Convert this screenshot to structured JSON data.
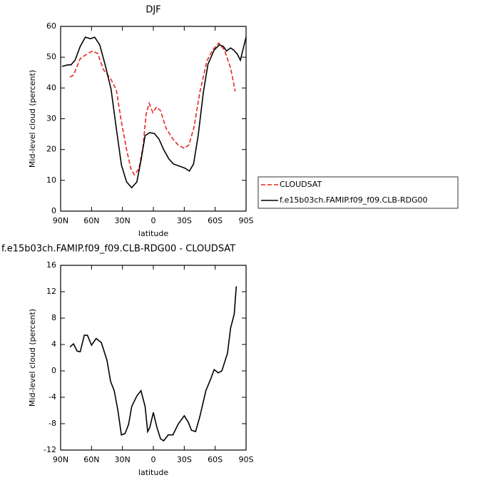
{
  "chart_data": [
    {
      "type": "line",
      "title": "DJF",
      "xlabel": "latitude",
      "ylabel": "Mid-level cloud (percent)",
      "xlim": [
        90,
        -90
      ],
      "xticks": [
        {
          "value": 90,
          "label": "90N"
        },
        {
          "value": 60,
          "label": "60N"
        },
        {
          "value": 30,
          "label": "30N"
        },
        0,
        {
          "value": -30,
          "label": "30S"
        },
        {
          "value": -60,
          "label": "60S"
        },
        {
          "value": -90,
          "label": "90S"
        }
      ],
      "ylim": [
        0,
        60
      ],
      "yticks": [
        0,
        10,
        20,
        30,
        40,
        50,
        60
      ],
      "legend": "right",
      "series": [
        {
          "name": "CLOUDSAT",
          "color": "#e8261d",
          "line_style": "dashed",
          "x": [
            81,
            77.5,
            71,
            66,
            59,
            54,
            48.5,
            41.5,
            36,
            31,
            26,
            22,
            18.5,
            14,
            10,
            7,
            4,
            0.5,
            -3,
            -7,
            -12.5,
            -19,
            -24,
            -30,
            -34.5,
            -39.5,
            -45,
            -52,
            -57.5,
            -63.5,
            -69,
            -75,
            -79.5
          ],
          "values": [
            43.5,
            44.2,
            49.5,
            50.7,
            52,
            51.2,
            46,
            43,
            39.5,
            29,
            20,
            14,
            11.8,
            13.7,
            21,
            31.5,
            35,
            32,
            33.8,
            32.6,
            26.8,
            23.4,
            21.5,
            20.4,
            21.5,
            27.3,
            38.4,
            48.8,
            52.3,
            54.6,
            52.3,
            46.5,
            38.9
          ]
        },
        {
          "name": "f.e15b03ch.FAMIP.f09_f09.CLB-RDG00",
          "color": "#000000",
          "line_style": "solid",
          "x": [
            88.6,
            83,
            80,
            76,
            71,
            66,
            61,
            57,
            52,
            46,
            41,
            36,
            31,
            26,
            21,
            16,
            12,
            8,
            3.5,
            -1,
            -5.5,
            -10,
            -15,
            -19.5,
            -25.5,
            -31,
            -35,
            -39,
            -43.5,
            -48.5,
            -53,
            -59,
            -64,
            -68,
            -71,
            -75,
            -78,
            -81.5,
            -84.5,
            -87,
            -90
          ],
          "values": [
            47,
            47.5,
            47.5,
            49,
            53.5,
            56.5,
            56,
            56.5,
            54,
            46.5,
            39.5,
            27,
            15,
            9.5,
            7.6,
            9.5,
            16.5,
            24.5,
            25.5,
            25.2,
            23.4,
            20,
            17,
            15.3,
            14.6,
            13.9,
            13,
            15.3,
            24.5,
            38.5,
            47.7,
            52.3,
            54,
            53.5,
            52,
            53,
            52.3,
            51,
            49,
            52.5,
            56.5
          ]
        }
      ]
    },
    {
      "type": "line",
      "title": "f.e15b03ch.FAMIP.f09_f09.CLB-RDG00 - CLOUDSAT",
      "xlabel": "latitude",
      "ylabel": "Mid-level cloud (percent)",
      "xlim": [
        90,
        -90
      ],
      "xticks": [
        {
          "value": 90,
          "label": "90N"
        },
        {
          "value": 60,
          "label": "60N"
        },
        {
          "value": 30,
          "label": "30N"
        },
        0,
        {
          "value": -30,
          "label": "30S"
        },
        {
          "value": -60,
          "label": "60S"
        },
        {
          "value": -90,
          "label": "90S"
        }
      ],
      "ylim": [
        -12,
        16
      ],
      "yticks": [
        -12,
        -8,
        -4,
        0,
        4,
        8,
        12,
        16
      ],
      "series": [
        {
          "color": "#000000",
          "line_style": "solid",
          "x": [
            81,
            77.5,
            74,
            71,
            67,
            64,
            60,
            55.5,
            50.5,
            45,
            41.5,
            38,
            34.5,
            31,
            27.5,
            24,
            21,
            16,
            12,
            8,
            5.5,
            3.5,
            0,
            -3.5,
            -7,
            -10,
            -14.5,
            -19,
            -24,
            -30,
            -34,
            -37,
            -41,
            -45,
            -51,
            -56,
            -59,
            -63,
            -66.5,
            -72,
            -75,
            -78.5,
            -80.5
          ],
          "values": [
            3.6,
            4.1,
            3,
            2.9,
            5.4,
            5.4,
            3.9,
            4.9,
            4.3,
            1.6,
            -1.6,
            -3,
            -5.9,
            -9.7,
            -9.5,
            -8.1,
            -5.4,
            -3.8,
            -3,
            -5.4,
            -9.2,
            -8.6,
            -6.3,
            -8.6,
            -10.3,
            -10.6,
            -9.7,
            -9.7,
            -8.1,
            -6.8,
            -7.8,
            -9,
            -9.2,
            -7,
            -3,
            -1.1,
            0.2,
            -0.3,
            0,
            2.7,
            6.5,
            8.6,
            12.8
          ]
        }
      ]
    }
  ]
}
